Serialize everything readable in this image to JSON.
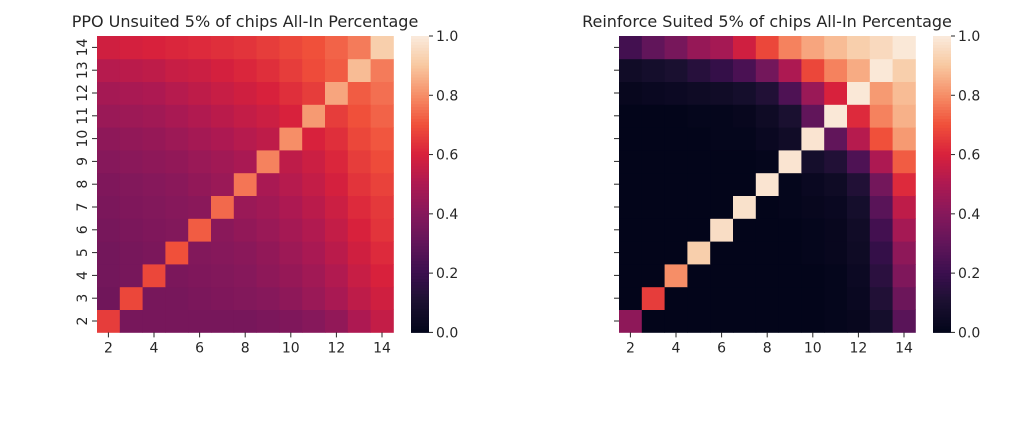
{
  "chart_data": [
    {
      "type": "heatmap",
      "title": "PPO Unsuited 5% of chips All-In Percentage",
      "xlabel": "",
      "ylabel": "",
      "x_categories": [
        2,
        3,
        4,
        5,
        6,
        7,
        8,
        9,
        10,
        11,
        12,
        13,
        14
      ],
      "y_categories": [
        2,
        3,
        4,
        5,
        6,
        7,
        8,
        9,
        10,
        11,
        12,
        13,
        14
      ],
      "x_tick_labels": [
        "2",
        "4",
        "6",
        "8",
        "10",
        "12",
        "14"
      ],
      "y_tick_labels": [
        "2",
        "3",
        "4",
        "5",
        "6",
        "7",
        "8",
        "9",
        "10",
        "11",
        "12",
        "13",
        "14"
      ],
      "colorbar": {
        "min": 0.0,
        "max": 1.0,
        "tick_labels": [
          "0.0",
          "0.2",
          "0.4",
          "0.6",
          "0.8",
          "1.0"
        ]
      },
      "values_note": "rows indexed by y (2..14), columns by x (2..14)",
      "values": [
        [
          0.66,
          0.36,
          0.36,
          0.36,
          0.36,
          0.36,
          0.36,
          0.37,
          0.38,
          0.4,
          0.43,
          0.5,
          0.55
        ],
        [
          0.34,
          0.68,
          0.36,
          0.36,
          0.37,
          0.38,
          0.39,
          0.4,
          0.42,
          0.45,
          0.49,
          0.54,
          0.58
        ],
        [
          0.35,
          0.36,
          0.68,
          0.37,
          0.38,
          0.39,
          0.4,
          0.42,
          0.44,
          0.47,
          0.51,
          0.56,
          0.6
        ],
        [
          0.35,
          0.36,
          0.37,
          0.7,
          0.39,
          0.4,
          0.41,
          0.43,
          0.46,
          0.49,
          0.53,
          0.58,
          0.62
        ],
        [
          0.36,
          0.37,
          0.38,
          0.39,
          0.72,
          0.41,
          0.43,
          0.45,
          0.48,
          0.51,
          0.55,
          0.6,
          0.64
        ],
        [
          0.37,
          0.38,
          0.39,
          0.4,
          0.41,
          0.74,
          0.45,
          0.47,
          0.5,
          0.53,
          0.57,
          0.62,
          0.65
        ],
        [
          0.38,
          0.39,
          0.4,
          0.41,
          0.43,
          0.45,
          0.76,
          0.49,
          0.52,
          0.55,
          0.59,
          0.64,
          0.67
        ],
        [
          0.4,
          0.41,
          0.42,
          0.43,
          0.45,
          0.47,
          0.49,
          0.78,
          0.54,
          0.57,
          0.61,
          0.66,
          0.69
        ],
        [
          0.42,
          0.43,
          0.44,
          0.46,
          0.48,
          0.5,
          0.52,
          0.54,
          0.8,
          0.6,
          0.63,
          0.68,
          0.71
        ],
        [
          0.45,
          0.46,
          0.47,
          0.49,
          0.51,
          0.53,
          0.55,
          0.57,
          0.6,
          0.82,
          0.66,
          0.7,
          0.73
        ],
        [
          0.48,
          0.49,
          0.5,
          0.52,
          0.54,
          0.56,
          0.58,
          0.6,
          0.63,
          0.66,
          0.84,
          0.72,
          0.75
        ],
        [
          0.52,
          0.53,
          0.54,
          0.56,
          0.57,
          0.59,
          0.61,
          0.63,
          0.66,
          0.69,
          0.72,
          0.88,
          0.77
        ],
        [
          0.58,
          0.59,
          0.6,
          0.61,
          0.62,
          0.63,
          0.64,
          0.66,
          0.68,
          0.7,
          0.73,
          0.77,
          0.92
        ]
      ]
    },
    {
      "type": "heatmap",
      "title": "Reinforce Suited 5% of chips All-In Percentage",
      "xlabel": "",
      "ylabel": "",
      "x_categories": [
        2,
        3,
        4,
        5,
        6,
        7,
        8,
        9,
        10,
        11,
        12,
        13,
        14
      ],
      "y_categories": [
        2,
        3,
        4,
        5,
        6,
        7,
        8,
        9,
        10,
        11,
        12,
        13,
        14
      ],
      "x_tick_labels": [
        "2",
        "4",
        "6",
        "8",
        "10",
        "12",
        "14"
      ],
      "y_tick_labels": [],
      "colorbar": {
        "min": 0.0,
        "max": 1.0,
        "tick_labels": [
          "0.0",
          "0.2",
          "0.4",
          "0.6",
          "0.8",
          "1.0"
        ]
      },
      "values_note": "rows indexed by y (2..14), columns by x (2..14)",
      "values": [
        [
          0.42,
          0.0,
          0.0,
          0.0,
          0.0,
          0.0,
          0.0,
          0.0,
          0.0,
          0.01,
          0.02,
          0.08,
          0.28
        ],
        [
          0.0,
          0.66,
          0.0,
          0.0,
          0.0,
          0.0,
          0.0,
          0.0,
          0.0,
          0.01,
          0.03,
          0.12,
          0.33
        ],
        [
          0.0,
          0.0,
          0.8,
          0.0,
          0.0,
          0.0,
          0.0,
          0.0,
          0.0,
          0.01,
          0.04,
          0.15,
          0.38
        ],
        [
          0.0,
          0.0,
          0.0,
          0.92,
          0.0,
          0.0,
          0.0,
          0.0,
          0.01,
          0.02,
          0.05,
          0.18,
          0.42
        ],
        [
          0.0,
          0.0,
          0.0,
          0.0,
          0.96,
          0.0,
          0.0,
          0.0,
          0.01,
          0.02,
          0.06,
          0.22,
          0.48
        ],
        [
          0.0,
          0.0,
          0.0,
          0.0,
          0.0,
          0.97,
          0.0,
          0.01,
          0.02,
          0.03,
          0.08,
          0.28,
          0.54
        ],
        [
          0.0,
          0.0,
          0.0,
          0.0,
          0.0,
          0.0,
          0.98,
          0.01,
          0.03,
          0.05,
          0.12,
          0.35,
          0.62
        ],
        [
          0.0,
          0.0,
          0.0,
          0.0,
          0.0,
          0.0,
          0.01,
          0.98,
          0.08,
          0.12,
          0.25,
          0.5,
          0.72
        ],
        [
          0.0,
          0.0,
          0.0,
          0.0,
          0.01,
          0.01,
          0.03,
          0.06,
          0.98,
          0.3,
          0.52,
          0.7,
          0.82
        ],
        [
          0.0,
          0.0,
          0.0,
          0.01,
          0.01,
          0.02,
          0.05,
          0.1,
          0.3,
          0.99,
          0.62,
          0.78,
          0.86
        ],
        [
          0.02,
          0.03,
          0.04,
          0.05,
          0.06,
          0.08,
          0.12,
          0.25,
          0.45,
          0.6,
          0.99,
          0.82,
          0.88
        ],
        [
          0.06,
          0.08,
          0.1,
          0.14,
          0.18,
          0.24,
          0.35,
          0.5,
          0.68,
          0.78,
          0.85,
          0.99,
          0.92
        ],
        [
          0.22,
          0.3,
          0.36,
          0.44,
          0.48,
          0.58,
          0.68,
          0.78,
          0.84,
          0.88,
          0.92,
          0.95,
          0.99
        ]
      ]
    }
  ]
}
